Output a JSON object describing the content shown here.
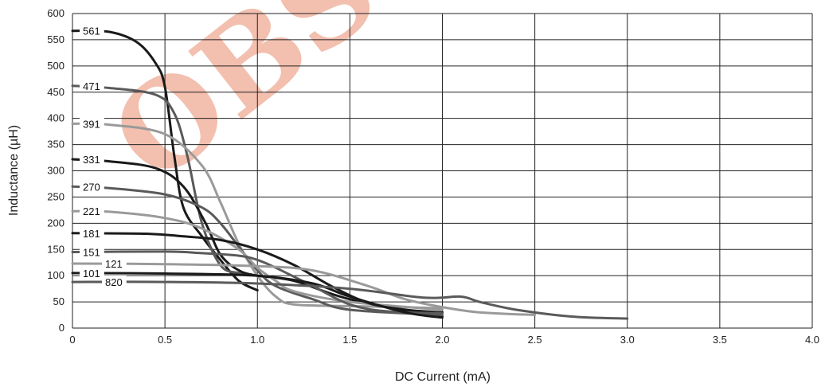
{
  "watermark": "OBSOLETE",
  "chart_data": {
    "type": "line",
    "xlabel": "DC Current (mA)",
    "ylabel": "Inductance (µH)",
    "xlim": [
      0,
      4.0
    ],
    "ylim": [
      0,
      600
    ],
    "xticks": [
      0,
      0.5,
      1.0,
      1.5,
      2.0,
      2.5,
      3.0,
      3.5,
      4.0
    ],
    "xtick_labels": [
      "0",
      "0.5",
      "1.0",
      "1.5",
      "2.0",
      "2.5",
      "3.0",
      "3.5",
      "4.0"
    ],
    "yticks": [
      0,
      50,
      100,
      150,
      200,
      250,
      300,
      350,
      400,
      450,
      500,
      550,
      600
    ],
    "grid": true,
    "series": [
      {
        "name": "561",
        "color": "#1a1a1a",
        "label_y": 567,
        "x": [
          0,
          0.2,
          0.35,
          0.45,
          0.5,
          0.55,
          0.6,
          0.7,
          0.8,
          0.9,
          1.0
        ],
        "y": [
          567,
          565,
          545,
          505,
          460,
          330,
          230,
          175,
          130,
          90,
          72
        ]
      },
      {
        "name": "471",
        "color": "#5a5a5a",
        "label_y": 462,
        "x": [
          0,
          0.2,
          0.45,
          0.55,
          0.62,
          0.7,
          0.8,
          0.9,
          1.0
        ],
        "y": [
          462,
          458,
          445,
          410,
          330,
          200,
          120,
          105,
          100
        ]
      },
      {
        "name": "391",
        "color": "#9a9a9a",
        "label_y": 390,
        "x": [
          0,
          0.2,
          0.5,
          0.7,
          0.8,
          0.9,
          1.0,
          1.1,
          1.2,
          1.5,
          2.0
        ],
        "y": [
          390,
          388,
          370,
          310,
          240,
          160,
          100,
          60,
          45,
          42,
          38
        ]
      },
      {
        "name": "331",
        "color": "#1a1a1a",
        "label_y": 322,
        "x": [
          0,
          0.2,
          0.45,
          0.6,
          0.72,
          0.8,
          0.9,
          1.0,
          1.2,
          1.5,
          2.0
        ],
        "y": [
          322,
          318,
          305,
          270,
          200,
          140,
          110,
          100,
          90,
          55,
          22
        ]
      },
      {
        "name": "270",
        "color": "#5a5a5a",
        "label_y": 270,
        "x": [
          0,
          0.2,
          0.5,
          0.7,
          0.8,
          0.9,
          1.0,
          1.1,
          1.3,
          1.5,
          2.0
        ],
        "y": [
          270,
          267,
          255,
          230,
          200,
          155,
          110,
          80,
          55,
          35,
          25
        ]
      },
      {
        "name": "221",
        "color": "#9a9a9a",
        "label_y": 223,
        "x": [
          0,
          0.2,
          0.5,
          0.7,
          0.9,
          1.0,
          1.1,
          1.2,
          1.5,
          2.0
        ],
        "y": [
          223,
          222,
          210,
          190,
          150,
          115,
          90,
          70,
          50,
          35
        ]
      },
      {
        "name": "181",
        "color": "#1a1a1a",
        "label_y": 181,
        "x": [
          0,
          0.4,
          0.6,
          0.8,
          1.0,
          1.2,
          1.4,
          1.6,
          1.8,
          2.0
        ],
        "y": [
          181,
          180,
          175,
          168,
          150,
          120,
          80,
          48,
          35,
          30
        ]
      },
      {
        "name": "151",
        "color": "#5a5a5a",
        "label_y": 145,
        "x": [
          0,
          0.5,
          0.7,
          0.9,
          1.0,
          1.1,
          1.3,
          1.5,
          1.7,
          2.0
        ],
        "y": [
          145,
          146,
          143,
          138,
          130,
          115,
          80,
          45,
          32,
          28
        ]
      },
      {
        "name": "121",
        "color": "#9a9a9a",
        "label_y": 123,
        "x": [
          0,
          0.5,
          1.0,
          1.3,
          1.6,
          1.8,
          2.0,
          2.2,
          2.5
        ],
        "y": [
          123,
          122,
          118,
          110,
          80,
          55,
          40,
          30,
          25
        ]
      },
      {
        "name": "101",
        "color": "#1a1a1a",
        "label_y": 105,
        "x": [
          0,
          0.5,
          1.0,
          1.3,
          1.5,
          1.8,
          2.0
        ],
        "y": [
          105,
          104,
          100,
          85,
          60,
          30,
          20
        ]
      },
      {
        "name": "820",
        "color": "#5a5a5a",
        "label_y": 88,
        "x": [
          0,
          0.5,
          1.0,
          1.5,
          1.9,
          2.1,
          2.2,
          2.4,
          2.7,
          3.0
        ],
        "y": [
          88,
          88,
          85,
          75,
          58,
          60,
          50,
          35,
          22,
          18
        ]
      }
    ]
  }
}
